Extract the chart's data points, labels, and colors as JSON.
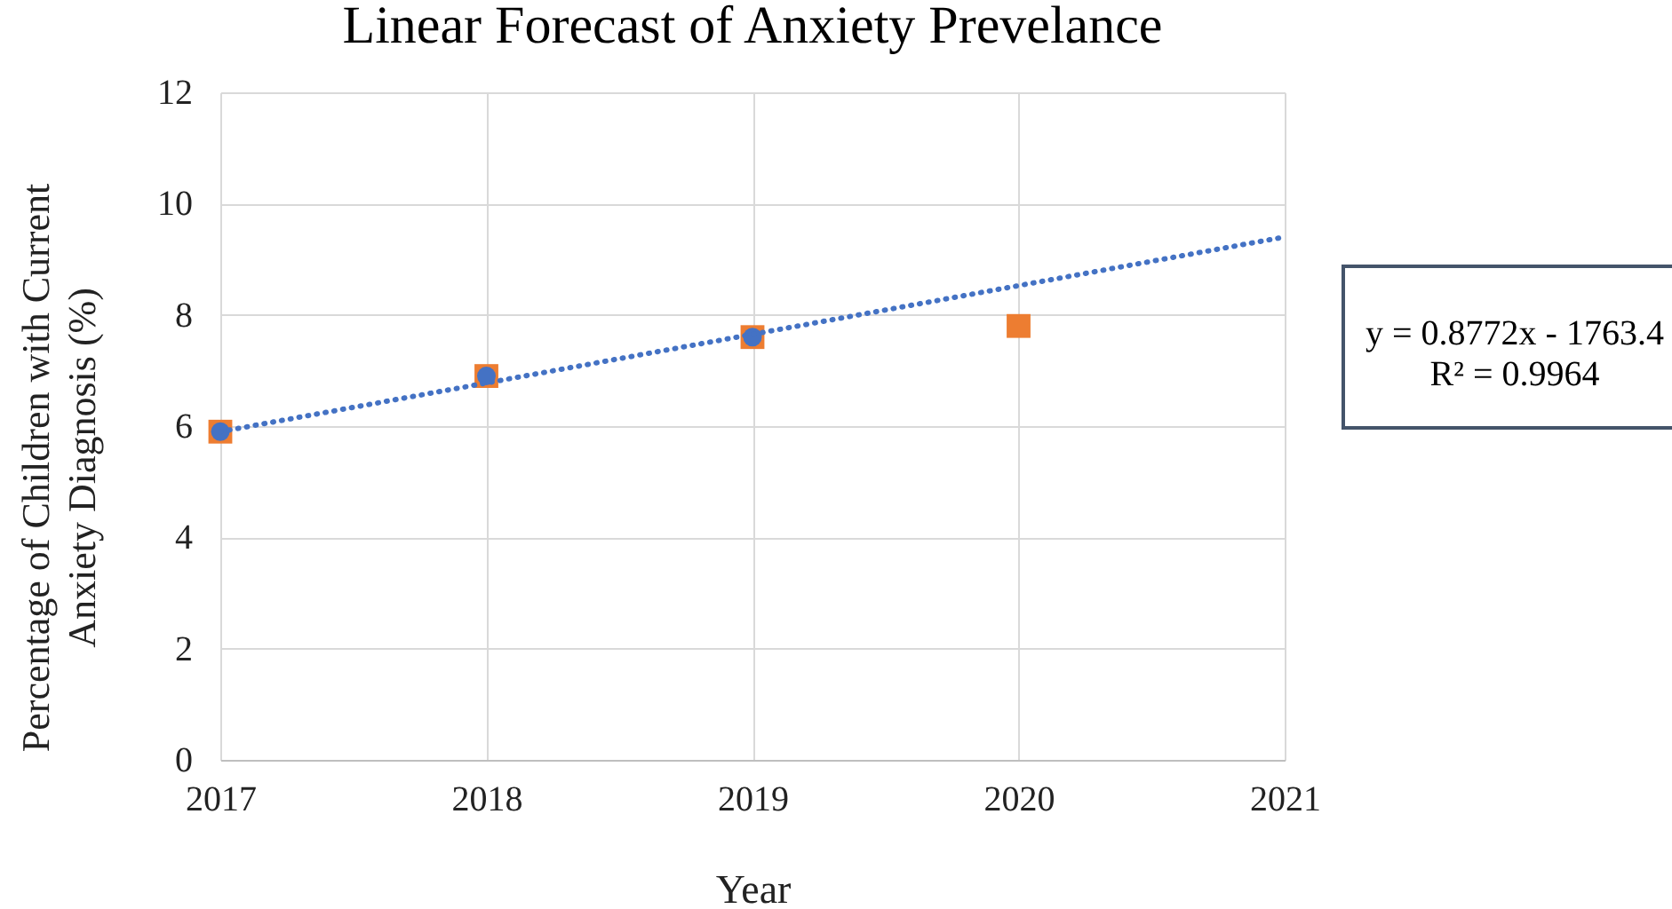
{
  "chart_data": {
    "type": "scatter",
    "title": "Linear Forecast of Anxiety Prevelance",
    "xlabel": "Year",
    "ylabel": "Percentage of Children with Current Anxiety Diagnosis (%)",
    "x": [
      2017,
      2018,
      2019,
      2020
    ],
    "series": [
      {
        "color": "#ed7d31",
        "marker": "square",
        "values": [
          5.9,
          6.9,
          7.6,
          7.8
        ]
      },
      {
        "color": "#4472c4",
        "marker": "circle",
        "x": [
          2017,
          2018,
          2019
        ],
        "values": [
          5.9,
          6.9,
          7.6
        ]
      },
      {
        "type": "line",
        "color": "#4472c4",
        "marker": "none",
        "line_style": "dotted",
        "x": [
          2017,
          2021
        ],
        "values": [
          5.9,
          9.4
        ]
      }
    ],
    "xlim": [
      2017,
      2021
    ],
    "xticks": [
      2017,
      2018,
      2019,
      2020,
      2021
    ],
    "ylim": [
      0,
      12
    ],
    "yticks": [
      0,
      2,
      4,
      6,
      8,
      10,
      12
    ],
    "grid": true,
    "annotations": [
      "y = 0.8772x - 1763.4",
      "R² = 0.9964"
    ]
  }
}
